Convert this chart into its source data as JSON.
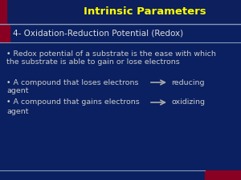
{
  "background_color": "#0a2060",
  "title": "Intrinsic Parameters",
  "title_color": "#FFFF00",
  "title_fontsize": 9.5,
  "title_bg_color": "#0d1f5c",
  "header_line_color": "#8899BB",
  "subtitle": "4- Oxidation-Reduction Potential (Redox)",
  "subtitle_color": "#DDDDDD",
  "subtitle_fontsize": 7.5,
  "accent_color": "#880022",
  "body_color": "#CCCCCC",
  "body_fontsize": 6.8,
  "bullet1_line1": "• Redox potential of a substrate is the ease with which",
  "bullet1_line2": "the substrate is able to gain or lose electrons",
  "bullet2": "• A compound that loses electrons",
  "bullet2_tag": "reducing",
  "bullet2_tag2": "agent",
  "bullet3": "• A compound that gains electrons",
  "bullet3_tag": "oxidizing",
  "bullet3_tag2": "agent",
  "arrow_color": "#AAAAAA"
}
